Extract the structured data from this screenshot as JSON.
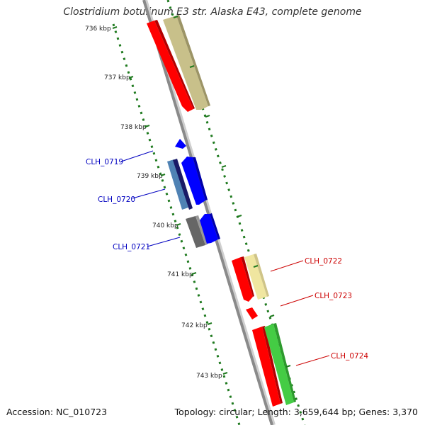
{
  "title": "Clostridium botulinum E3 str. Alaska E43, complete genome",
  "footer": {
    "accession": "Accession: NC_010723",
    "stats": "Topology: circular; Length: 3,659,644 bp; Genes: 3,370"
  },
  "scale": {
    "unit": "kbp",
    "ticks": [
      {
        "label": "736 kbp"
      },
      {
        "label": "737 kbp"
      },
      {
        "label": "738 kbp"
      },
      {
        "label": "739 kbp"
      },
      {
        "label": "740 kbp"
      },
      {
        "label": "741 kbp"
      },
      {
        "label": "742 kbp"
      },
      {
        "label": "743 kbp"
      }
    ]
  },
  "colors": {
    "backbone": "#8a8a8a",
    "tick_green": "#1f7a1f",
    "cds_red": "#ff0000",
    "gene_olive": "#c8c08a",
    "cds_blue": "#0000ff",
    "cds_navy": "#1a1a66",
    "cds_steel": "#4f82b4",
    "cds_gray": "#666666",
    "gene_yellow": "#f0e6a0",
    "gene_green": "#44cc44",
    "label_blue": "#0000c0",
    "label_red": "#cc0000"
  },
  "gene_labels": [
    {
      "name": "CLH_0719",
      "side": "left"
    },
    {
      "name": "CLH_0720",
      "side": "left"
    },
    {
      "name": "CLH_0721",
      "side": "left"
    },
    {
      "name": "CLH_0722",
      "side": "right"
    },
    {
      "name": "CLH_0723",
      "side": "right"
    },
    {
      "name": "CLH_0724",
      "side": "right"
    }
  ]
}
